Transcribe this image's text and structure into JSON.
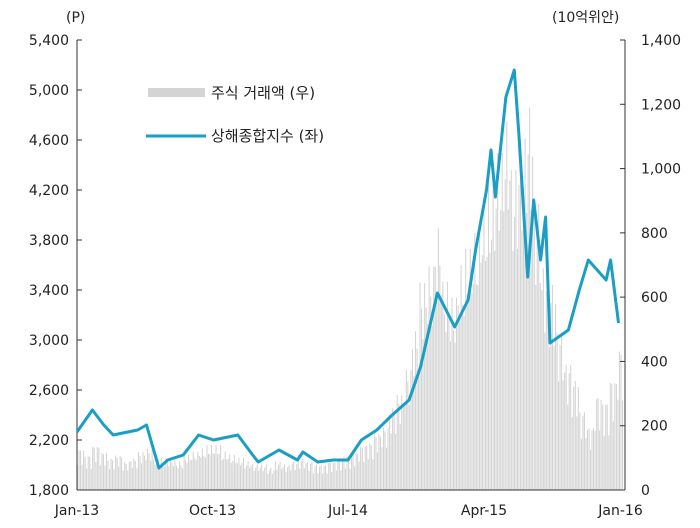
{
  "chart_data": {
    "type": "bar+line",
    "left_unit": "(P)",
    "right_unit": "(10억위안)",
    "left_axis": {
      "range": [
        1800,
        5400
      ],
      "ticks": [
        "1,800",
        "2,200",
        "2,600",
        "3,000",
        "3,400",
        "3,800",
        "4,200",
        "4,600",
        "5,000",
        "5,400"
      ]
    },
    "right_axis": {
      "range": [
        0,
        1400
      ],
      "ticks": [
        "0",
        "200",
        "400",
        "600",
        "800",
        "1,000",
        "1,200",
        "1,400"
      ]
    },
    "x_range": [
      "2013-01-01",
      "2016-01-10"
    ],
    "x_ticks": [
      {
        "label": "Jan-13",
        "date": "2013-01-01"
      },
      {
        "label": "Oct-13",
        "date": "2013-10-01"
      },
      {
        "label": "Jul-14",
        "date": "2014-07-01"
      },
      {
        "label": "Apr-15",
        "date": "2015-04-01"
      },
      {
        "label": "Jan-16",
        "date": "2016-01-01"
      }
    ],
    "grid": false,
    "legend_position": "top-left",
    "colors": {
      "bars": "#d4d4d4",
      "line": "#1a9ec4"
    },
    "series": [
      {
        "name": "주식 거래액 (우)",
        "type": "bar",
        "axis": "right",
        "frequency": "semi-monthly from 2013-01",
        "values": [
          130,
          110,
          140,
          120,
          100,
          110,
          90,
          100,
          120,
          130,
          110,
          100,
          100,
          90,
          110,
          120,
          130,
          140,
          140,
          120,
          110,
          100,
          90,
          80,
          80,
          70,
          90,
          80,
          90,
          100,
          90,
          80,
          80,
          90,
          100,
          110,
          120,
          140,
          150,
          180,
          200,
          260,
          300,
          380,
          500,
          650,
          700,
          820,
          650,
          600,
          700,
          750,
          800,
          900,
          950,
          1050,
          1150,
          1000,
          1100,
          1200,
          900,
          700,
          650,
          500,
          400,
          350,
          250,
          200,
          300,
          280,
          350,
          450,
          400,
          300
        ]
      },
      {
        "name": "상해종합지수 (좌)",
        "type": "line",
        "axis": "left",
        "points": [
          [
            "2013-01-01",
            2264
          ],
          [
            "2013-02-01",
            2440
          ],
          [
            "2013-02-24",
            2320
          ],
          [
            "2013-03-15",
            2240
          ],
          [
            "2013-05-03",
            2280
          ],
          [
            "2013-05-21",
            2320
          ],
          [
            "2013-06-15",
            1976
          ],
          [
            "2013-07-03",
            2040
          ],
          [
            "2013-08-03",
            2080
          ],
          [
            "2013-09-03",
            2240
          ],
          [
            "2013-10-03",
            2200
          ],
          [
            "2013-11-21",
            2240
          ],
          [
            "2013-12-21",
            2080
          ],
          [
            "2014-01-01",
            2024
          ],
          [
            "2014-02-12",
            2120
          ],
          [
            "2014-03-21",
            2040
          ],
          [
            "2014-04-01",
            2104
          ],
          [
            "2014-05-01",
            2024
          ],
          [
            "2014-06-01",
            2040
          ],
          [
            "2014-07-01",
            2040
          ],
          [
            "2014-07-28",
            2200
          ],
          [
            "2014-08-28",
            2280
          ],
          [
            "2014-09-28",
            2400
          ],
          [
            "2014-11-01",
            2520
          ],
          [
            "2014-11-24",
            2784
          ],
          [
            "2014-12-28",
            3376
          ],
          [
            "2015-02-01",
            3104
          ],
          [
            "2015-02-28",
            3320
          ],
          [
            "2015-03-15",
            3720
          ],
          [
            "2015-04-06",
            4200
          ],
          [
            "2015-04-15",
            4520
          ],
          [
            "2015-04-24",
            4144
          ],
          [
            "2015-05-15",
            4944
          ],
          [
            "2015-06-01",
            5160
          ],
          [
            "2015-06-10",
            4656
          ],
          [
            "2015-06-28",
            3504
          ],
          [
            "2015-07-10",
            4120
          ],
          [
            "2015-07-24",
            3640
          ],
          [
            "2015-08-03",
            3984
          ],
          [
            "2015-08-12",
            2976
          ],
          [
            "2015-09-18",
            3080
          ],
          [
            "2015-10-10",
            3400
          ],
          [
            "2015-10-28",
            3640
          ],
          [
            "2015-12-03",
            3480
          ],
          [
            "2015-12-12",
            3640
          ],
          [
            "2015-12-28",
            3136
          ]
        ]
      }
    ]
  }
}
